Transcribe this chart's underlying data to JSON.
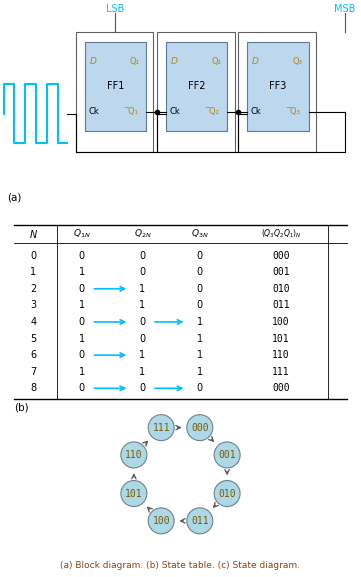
{
  "table_rows": [
    [
      0,
      0,
      0,
      0,
      "000"
    ],
    [
      1,
      1,
      0,
      0,
      "001"
    ],
    [
      2,
      0,
      1,
      0,
      "010"
    ],
    [
      3,
      1,
      1,
      0,
      "011"
    ],
    [
      4,
      0,
      0,
      1,
      "100"
    ],
    [
      5,
      1,
      0,
      1,
      "101"
    ],
    [
      6,
      0,
      1,
      1,
      "110"
    ],
    [
      7,
      1,
      1,
      1,
      "111"
    ],
    [
      8,
      0,
      0,
      0,
      "000"
    ]
  ],
  "transitions": [
    [
      "000",
      "001"
    ],
    [
      "001",
      "010"
    ],
    [
      "010",
      "011"
    ],
    [
      "011",
      "100"
    ],
    [
      "100",
      "101"
    ],
    [
      "101",
      "110"
    ],
    [
      "110",
      "111"
    ],
    [
      "111",
      "000"
    ]
  ],
  "circuit_bg": "#BDD7EE",
  "circuit_border": "#5A7A9A",
  "clock_color": "#00BFFF",
  "arrow_color": "#00BFFF",
  "lsb_msb_color": "#00BFFF",
  "caption_color": "#8B4513",
  "label_color": "#B8860B",
  "node_color": "#ADD8E6",
  "node_edge_color": "#708090",
  "state_order": [
    "111",
    "000",
    "001",
    "010",
    "011",
    "100",
    "101",
    "110"
  ],
  "angles_deg": [
    112.5,
    67.5,
    22.5,
    -22.5,
    -67.5,
    -112.5,
    -157.5,
    157.5
  ]
}
